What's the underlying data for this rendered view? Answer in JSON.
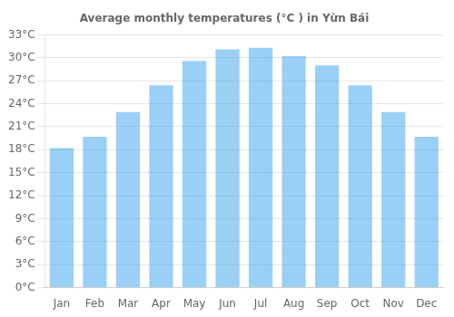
{
  "chart_data": {
    "type": "bar",
    "title": "Average monthly temperatures (°C ) in Yừn Bái",
    "categories": [
      "Jan",
      "Feb",
      "Mar",
      "Apr",
      "May",
      "Jun",
      "Jul",
      "Aug",
      "Sep",
      "Oct",
      "Nov",
      "Dec"
    ],
    "values": [
      18.2,
      19.7,
      22.9,
      26.4,
      29.6,
      31.1,
      31.3,
      30.2,
      29.0,
      26.4,
      22.9,
      19.7
    ],
    "ylim": [
      0,
      33
    ],
    "yticks": [
      {
        "value": 0,
        "label": "0°C"
      },
      {
        "value": 3,
        "label": "3°C"
      },
      {
        "value": 6,
        "label": "6°C"
      },
      {
        "value": 9,
        "label": "9°C"
      },
      {
        "value": 12,
        "label": "12°C"
      },
      {
        "value": 15,
        "label": "15°C"
      },
      {
        "value": 18,
        "label": "18°C"
      },
      {
        "value": 21,
        "label": "21°C"
      },
      {
        "value": 24,
        "label": "24°C"
      },
      {
        "value": 27,
        "label": "27°C"
      },
      {
        "value": 30,
        "label": "30°C"
      },
      {
        "value": 33,
        "label": "33°C"
      }
    ],
    "grid": true
  }
}
